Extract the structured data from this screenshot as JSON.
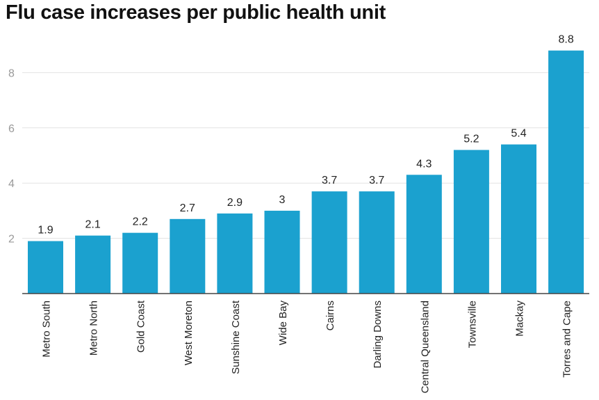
{
  "chart_data": {
    "type": "bar",
    "title": "Flu case increases per public health unit",
    "categories": [
      "Metro South",
      "Metro North",
      "Gold Coast",
      "West Moreton",
      "Sunshine Coast",
      "Wide Bay",
      "Cairns",
      "Darling Downs",
      "Central Queensland",
      "Townsville",
      "Mackay",
      "Torres and Cape"
    ],
    "values": [
      1.9,
      2.1,
      2.2,
      2.7,
      2.9,
      3,
      3.7,
      3.7,
      4.3,
      5.2,
      5.4,
      8.8
    ],
    "value_labels": [
      "1.9",
      "2.1",
      "2.2",
      "2.7",
      "2.9",
      "3",
      "3.7",
      "3.7",
      "4.3",
      "5.2",
      "5.4",
      "8.8"
    ],
    "yticks": [
      2,
      4,
      6,
      8
    ],
    "ylim": [
      0,
      9
    ],
    "grid": true,
    "bar_color": "#1ba1cf",
    "xlabel": "",
    "ylabel": ""
  }
}
